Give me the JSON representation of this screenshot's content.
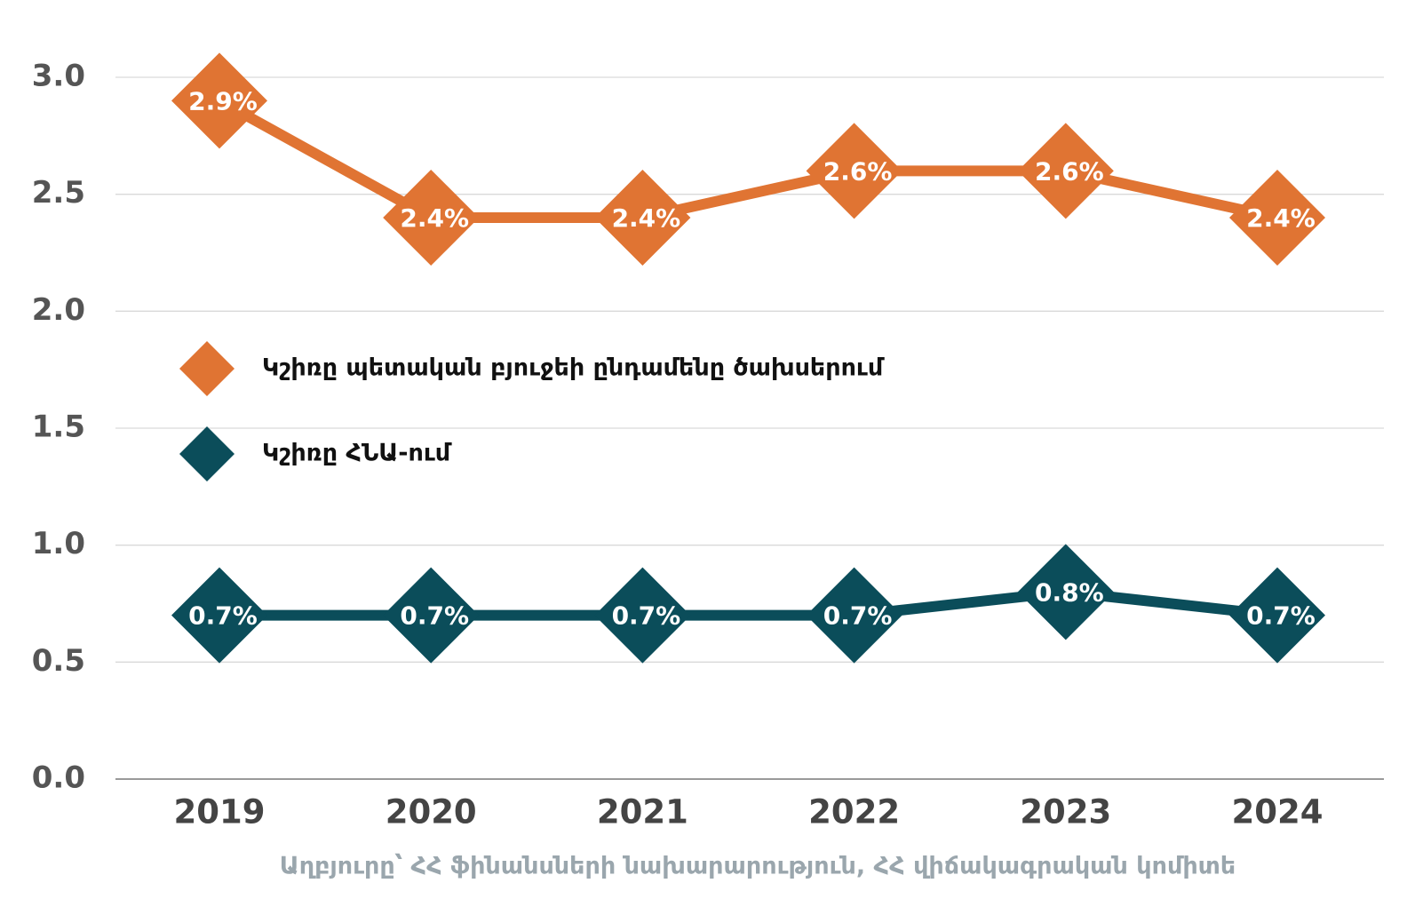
{
  "chart_data": {
    "type": "line",
    "categories": [
      "2019",
      "2020",
      "2021",
      "2022",
      "2023",
      "2024"
    ],
    "series": [
      {
        "name": "Կշիռը պետական բյուջեի ընդամենը ծախսերում",
        "color": "#e07433",
        "values": [
          2.9,
          2.4,
          2.4,
          2.6,
          2.6,
          2.4
        ],
        "value_labels": [
          "2.9%",
          "2.4%",
          "2.4%",
          "2.6%",
          "2.6%",
          "2.4%"
        ]
      },
      {
        "name": "Կշիռը ՀՆԱ-ում",
        "color": "#0b4d5a",
        "values": [
          0.7,
          0.7,
          0.7,
          0.7,
          0.8,
          0.7
        ],
        "value_labels": [
          "0.7%",
          "0.7%",
          "0.7%",
          "0.7%",
          "0.8%",
          "0.7%"
        ]
      }
    ],
    "ylim": [
      0,
      3
    ],
    "yticks": [
      {
        "value": 0,
        "label": "0.0"
      },
      0.5,
      {
        "value": 1,
        "label": "1.0"
      },
      1.5,
      {
        "value": 2,
        "label": "2.0"
      },
      2.5,
      {
        "value": 3,
        "label": "3.0"
      }
    ],
    "grid": true,
    "legend": "left",
    "source": "Աղբյուրը՝ ՀՀ ֆինանսների նախարարություն, ՀՀ վիճակագրական կոմիտե"
  }
}
